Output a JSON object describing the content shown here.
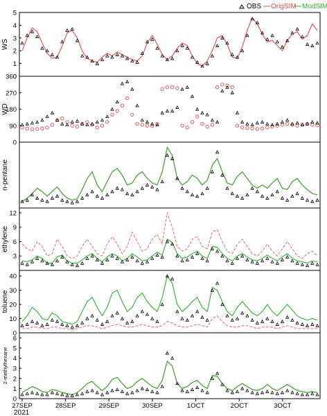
{
  "legend": {
    "obs_label": "OBS",
    "orig_label": "OrigSIM",
    "mod_label": "ModSIM",
    "colors": {
      "obs": "#000000",
      "orig": "#e8474a",
      "mod": "#2cb12c"
    }
  },
  "x_axis": {
    "tick_labels": [
      "27SEP",
      "28SEP",
      "29SEP",
      "30SEP",
      "1OCT",
      "2OCT",
      "3OCT"
    ],
    "year_label": "2021"
  },
  "chart_data": [
    {
      "type": "line",
      "ylabel": "WS",
      "ylim": [
        0,
        5
      ],
      "yticks": [
        0,
        1,
        2,
        3,
        4,
        5
      ],
      "obs_marker": "triangle",
      "series": [
        {
          "name": "OBS",
          "style": "triangles",
          "values": [
            2.6,
            3.2,
            3.5,
            3.1,
            2.2,
            2.0,
            1.7,
            1.5,
            2.7,
            3.6,
            3.7,
            2.8,
            1.6,
            1.5,
            1.2,
            1.0,
            1.3,
            1.6,
            1.5,
            1.7,
            1.6,
            1.4,
            1.2,
            1.1,
            1.8,
            2.7,
            2.9,
            2.2,
            1.6,
            1.3,
            1.4,
            2.0,
            2.4,
            2.2,
            1.5,
            1.1,
            0.8,
            1.0,
            1.6,
            2.4,
            3.0,
            2.6,
            1.7,
            1.5,
            2.0,
            3.2,
            4.5,
            4.2,
            3.4,
            2.9,
            3.2,
            2.7,
            2.3,
            2.8,
            3.4,
            3.7,
            3.1,
            2.5,
            2.4,
            2.6
          ]
        },
        {
          "name": "OrigSIM",
          "style": "line",
          "values": [
            2.0,
            3.0,
            3.8,
            3.5,
            2.6,
            1.8,
            1.4,
            1.5,
            2.4,
            3.4,
            3.6,
            3.0,
            2.0,
            1.4,
            1.2,
            1.1,
            1.5,
            1.8,
            1.6,
            1.9,
            1.7,
            1.5,
            1.3,
            1.2,
            1.6,
            2.6,
            3.2,
            2.5,
            1.7,
            1.3,
            1.6,
            2.2,
            2.6,
            2.4,
            1.6,
            1.0,
            0.8,
            1.2,
            2.0,
            3.0,
            3.2,
            2.5,
            1.5,
            1.4,
            2.3,
            3.6,
            4.6,
            4.1,
            3.3,
            2.7,
            2.8,
            2.4,
            2.0,
            2.8,
            3.3,
            3.5,
            2.9,
            3.2,
            4.1,
            3.6
          ]
        }
      ]
    },
    {
      "type": "scatter",
      "ylabel": "WD",
      "ylim": [
        0,
        360
      ],
      "yticks": [
        0,
        90,
        180,
        270,
        360
      ],
      "obs_marker": "triangle",
      "series": [
        {
          "name": "OBS",
          "style": "triangles",
          "values": [
            95,
            100,
            105,
            110,
            120,
            140,
            160,
            120,
            100,
            95,
            110,
            115,
            100,
            95,
            100,
            110,
            120,
            140,
            180,
            220,
            320,
            330,
            290,
            200,
            120,
            110,
            100,
            95,
            160,
            170,
            170,
            190,
            290,
            300,
            250,
            180,
            160,
            150,
            120,
            110,
            280,
            300,
            270,
            160,
            110,
            100,
            95,
            105,
            110,
            100,
            95,
            100,
            110,
            120,
            100,
            105,
            95,
            100,
            110,
            105
          ]
        },
        {
          "name": "OrigSIM",
          "style": "circles",
          "values": [
            80,
            75,
            70,
            72,
            75,
            80,
            95,
            120,
            130,
            110,
            90,
            85,
            100,
            110,
            95,
            80,
            90,
            110,
            150,
            170,
            200,
            240,
            150,
            100,
            95,
            90,
            88,
            100,
            290,
            300,
            300,
            295,
            90,
            80,
            110,
            140,
            100,
            85,
            95,
            300,
            315,
            310,
            300,
            90,
            80,
            78,
            75,
            72,
            75,
            80,
            85,
            90,
            95,
            100,
            95,
            90,
            95,
            100,
            95,
            92
          ]
        }
      ]
    },
    {
      "type": "line",
      "ylabel": "n-pentane",
      "ylim": [
        0,
        1
      ],
      "yticks": [],
      "obs_marker": "triangle",
      "series": [
        {
          "name": "OBS",
          "style": "triangles",
          "values": [
            0.1,
            0.12,
            0.2,
            0.15,
            0.12,
            0.1,
            0.15,
            0.18,
            0.12,
            0.1,
            0.08,
            0.1,
            0.15,
            0.2,
            0.25,
            0.18,
            0.15,
            0.2,
            0.25,
            0.3,
            0.28,
            0.22,
            0.2,
            0.25,
            0.3,
            0.35,
            0.32,
            0.28,
            0.4,
            0.8,
            0.75,
            0.45,
            0.3,
            0.25,
            0.2,
            0.18,
            0.22,
            0.3,
            0.55,
            0.85,
            0.5,
            0.3,
            0.22,
            0.18,
            0.15,
            0.2,
            0.3,
            0.25,
            0.18,
            0.15,
            0.2,
            0.25,
            0.15,
            0.12,
            0.18,
            0.22,
            0.15,
            0.12,
            0.1,
            0.12
          ]
        },
        {
          "name": "OrigSIM",
          "style": "line",
          "values": [
            0.1,
            0.15,
            0.22,
            0.3,
            0.25,
            0.18,
            0.25,
            0.32,
            0.22,
            0.15,
            0.12,
            0.14,
            0.28,
            0.45,
            0.55,
            0.35,
            0.25,
            0.4,
            0.55,
            0.6,
            0.5,
            0.35,
            0.38,
            0.5,
            0.55,
            0.45,
            0.38,
            0.35,
            0.55,
            0.92,
            0.8,
            0.45,
            0.35,
            0.4,
            0.5,
            0.45,
            0.35,
            0.42,
            0.65,
            0.75,
            0.55,
            0.38,
            0.35,
            0.48,
            0.55,
            0.45,
            0.35,
            0.3,
            0.35,
            0.3,
            0.38,
            0.45,
            0.3,
            0.28,
            0.4,
            0.45,
            0.35,
            0.28,
            0.22,
            0.2
          ]
        },
        {
          "name": "ModSIM",
          "style": "line",
          "values": [
            0.1,
            0.15,
            0.22,
            0.3,
            0.25,
            0.18,
            0.25,
            0.32,
            0.22,
            0.15,
            0.12,
            0.14,
            0.28,
            0.45,
            0.55,
            0.35,
            0.25,
            0.4,
            0.55,
            0.6,
            0.5,
            0.35,
            0.38,
            0.5,
            0.55,
            0.45,
            0.38,
            0.35,
            0.55,
            0.92,
            0.8,
            0.45,
            0.35,
            0.4,
            0.5,
            0.45,
            0.35,
            0.42,
            0.65,
            0.75,
            0.55,
            0.38,
            0.35,
            0.48,
            0.55,
            0.45,
            0.35,
            0.3,
            0.35,
            0.3,
            0.38,
            0.45,
            0.3,
            0.28,
            0.4,
            0.45,
            0.35,
            0.28,
            0.22,
            0.2
          ]
        }
      ]
    },
    {
      "type": "line",
      "ylabel": "ethylene",
      "ylim": [
        0,
        13
      ],
      "yticks": [
        3,
        6,
        9,
        12
      ],
      "obs_marker": "triangle",
      "series": [
        {
          "name": "OBS",
          "style": "triangles",
          "values": [
            1.5,
            1.2,
            1.8,
            2.5,
            2.0,
            1.5,
            1.2,
            2.0,
            2.8,
            1.8,
            1.2,
            1.0,
            1.5,
            2.5,
            3.0,
            2.2,
            1.5,
            2.2,
            3.0,
            2.5,
            1.8,
            2.2,
            2.8,
            2.0,
            1.5,
            1.8,
            2.5,
            3.2,
            2.8,
            6.0,
            5.5,
            3.0,
            2.0,
            2.2,
            2.8,
            3.5,
            2.5,
            2.0,
            4.5,
            4.0,
            3.0,
            2.0,
            1.5,
            2.5,
            3.0,
            2.2,
            1.8,
            1.5,
            2.0,
            2.5,
            1.8,
            1.5,
            2.2,
            2.8,
            2.0,
            1.5,
            1.2,
            1.0,
            1.5,
            1.2
          ]
        },
        {
          "name": "OrigSIM",
          "style": "line-dashed",
          "values": [
            5.5,
            4.5,
            4.0,
            6.0,
            5.0,
            3.0,
            3.5,
            6.5,
            5.0,
            3.0,
            2.5,
            3.0,
            5.0,
            6.5,
            5.0,
            3.5,
            3.0,
            5.5,
            7.0,
            5.5,
            3.5,
            5.0,
            8.0,
            6.0,
            4.0,
            4.5,
            6.5,
            7.5,
            5.5,
            12.0,
            9.0,
            5.0,
            4.0,
            4.5,
            6.5,
            7.0,
            5.0,
            4.5,
            8.0,
            8.5,
            6.0,
            4.0,
            3.5,
            5.5,
            6.5,
            5.0,
            3.5,
            3.0,
            4.0,
            5.5,
            4.0,
            3.0,
            4.5,
            6.0,
            4.5,
            3.0,
            2.5,
            3.5,
            4.0,
            3.0
          ]
        },
        {
          "name": "ModSIM",
          "style": "line",
          "values": [
            2.0,
            1.8,
            2.2,
            3.0,
            2.5,
            1.5,
            1.5,
            2.8,
            3.2,
            2.0,
            1.5,
            1.5,
            2.2,
            3.0,
            3.5,
            2.5,
            1.8,
            2.8,
            3.5,
            3.0,
            2.0,
            2.5,
            3.5,
            2.8,
            2.0,
            2.2,
            3.0,
            3.8,
            3.2,
            6.5,
            5.8,
            3.5,
            2.5,
            2.8,
            3.5,
            4.0,
            3.0,
            2.5,
            5.0,
            4.8,
            3.5,
            2.5,
            2.0,
            3.0,
            3.5,
            2.8,
            2.2,
            2.0,
            2.5,
            3.2,
            2.5,
            2.0,
            2.8,
            3.5,
            2.5,
            2.0,
            1.8,
            1.5,
            2.0,
            1.8
          ]
        }
      ]
    },
    {
      "type": "line",
      "ylabel": "toluene",
      "ylim": [
        0,
        44
      ],
      "yticks": [
        0,
        10,
        20,
        30,
        40
      ],
      "obs_marker": "triangle",
      "series": [
        {
          "name": "OBS",
          "style": "triangles",
          "values": [
            5,
            6,
            8,
            7,
            5,
            6,
            9,
            8,
            6,
            5,
            4,
            5,
            7,
            10,
            12,
            9,
            6,
            8,
            12,
            14,
            10,
            7,
            8,
            12,
            15,
            13,
            10,
            8,
            20,
            40,
            38,
            15,
            10,
            9,
            12,
            15,
            11,
            9,
            30,
            35,
            20,
            12,
            9,
            10,
            14,
            12,
            9,
            7,
            8,
            10,
            8,
            6,
            8,
            11,
            9,
            7,
            6,
            5,
            6,
            5
          ]
        },
        {
          "name": "OrigSIM",
          "style": "line-dashed",
          "values": [
            3,
            3,
            4,
            4,
            3,
            3,
            4,
            4,
            3,
            3,
            2,
            3,
            4,
            5,
            5,
            4,
            3,
            4,
            5,
            6,
            5,
            4,
            4,
            5,
            6,
            5,
            4,
            4,
            5,
            8,
            7,
            5,
            4,
            4,
            5,
            6,
            5,
            4,
            10,
            12,
            8,
            5,
            4,
            4,
            5,
            5,
            4,
            3,
            4,
            4,
            4,
            3,
            4,
            5,
            4,
            3,
            3,
            3,
            3,
            3
          ]
        },
        {
          "name": "ModSIM",
          "style": "line",
          "values": [
            8,
            12,
            18,
            15,
            10,
            9,
            14,
            12,
            8,
            7,
            6,
            8,
            15,
            22,
            25,
            18,
            12,
            18,
            28,
            30,
            22,
            15,
            18,
            25,
            28,
            22,
            18,
            15,
            25,
            40,
            35,
            20,
            15,
            18,
            22,
            25,
            18,
            15,
            32,
            30,
            22,
            15,
            12,
            18,
            22,
            18,
            14,
            12,
            15,
            20,
            15,
            12,
            16,
            20,
            16,
            12,
            10,
            9,
            10,
            9
          ]
        }
      ]
    },
    {
      "type": "line",
      "ylabel": "2-methylhexane",
      "ylim": [
        0,
        6.5
      ],
      "yticks": [
        0,
        1,
        2,
        3,
        4,
        5,
        6
      ],
      "obs_marker": "triangle",
      "series": [
        {
          "name": "OBS",
          "style": "triangles",
          "values": [
            0.4,
            0.5,
            0.6,
            0.5,
            0.4,
            0.4,
            0.6,
            0.5,
            0.4,
            0.3,
            0.3,
            0.4,
            0.5,
            0.7,
            0.8,
            0.6,
            0.4,
            0.6,
            0.8,
            0.9,
            0.7,
            0.5,
            0.6,
            0.8,
            1.0,
            0.9,
            0.7,
            0.6,
            1.2,
            4.5,
            4.0,
            1.5,
            0.8,
            0.7,
            0.9,
            1.1,
            0.8,
            0.6,
            2.0,
            2.5,
            1.4,
            0.8,
            0.6,
            0.7,
            1.0,
            0.8,
            0.6,
            0.5,
            0.6,
            0.7,
            0.6,
            0.5,
            0.6,
            0.8,
            0.6,
            0.5,
            0.4,
            0.4,
            0.5,
            0.4
          ]
        },
        {
          "name": "OrigSIM",
          "style": "line",
          "values": [
            0.6,
            0.9,
            1.2,
            1.0,
            0.7,
            0.6,
            0.9,
            0.8,
            0.6,
            0.5,
            0.4,
            0.6,
            1.0,
            1.5,
            1.7,
            1.2,
            0.8,
            1.2,
            1.9,
            2.1,
            1.5,
            1.0,
            1.2,
            1.7,
            2.0,
            1.6,
            1.2,
            1.0,
            1.8,
            3.7,
            3.2,
            1.5,
            1.0,
            1.2,
            1.6,
            1.8,
            1.3,
            1.0,
            2.3,
            2.2,
            1.5,
            1.0,
            0.8,
            1.2,
            1.5,
            1.2,
            0.9,
            0.8,
            1.0,
            1.4,
            1.0,
            0.8,
            1.1,
            1.4,
            1.1,
            0.8,
            0.7,
            0.6,
            0.7,
            0.6
          ]
        },
        {
          "name": "ModSIM",
          "style": "line",
          "values": [
            0.6,
            0.9,
            1.2,
            1.0,
            0.7,
            0.6,
            0.9,
            0.8,
            0.6,
            0.5,
            0.4,
            0.6,
            1.0,
            1.5,
            1.7,
            1.2,
            0.8,
            1.2,
            1.9,
            2.1,
            1.5,
            1.0,
            1.2,
            1.7,
            2.0,
            1.6,
            1.2,
            1.0,
            1.8,
            3.7,
            3.2,
            1.5,
            1.0,
            1.2,
            1.6,
            1.8,
            1.3,
            1.0,
            2.3,
            2.2,
            1.5,
            1.0,
            0.8,
            1.2,
            1.5,
            1.2,
            0.9,
            0.8,
            1.0,
            1.4,
            1.0,
            0.8,
            1.1,
            1.4,
            1.1,
            0.8,
            0.7,
            0.6,
            0.7,
            0.6
          ]
        }
      ]
    }
  ]
}
